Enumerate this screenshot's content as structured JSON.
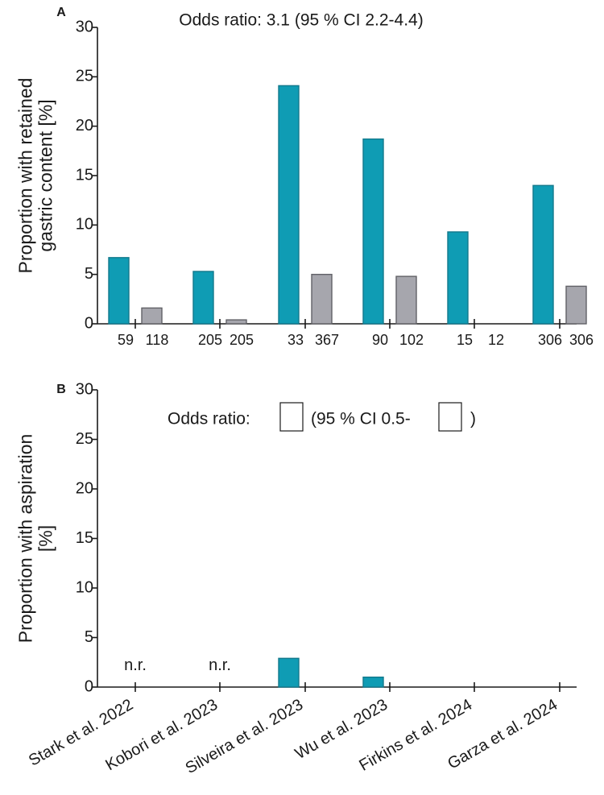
{
  "chart_data": [
    {
      "panel": "A",
      "type": "bar",
      "title": "Odds ratio: 3.1 (95 % CI 2.2-4.4)",
      "xlabel": "",
      "ylabel": "Proportion with retained gastric content [%]",
      "ylim": [
        0,
        30
      ],
      "yticks": [
        0,
        5,
        10,
        15,
        20,
        25,
        30
      ],
      "categories": [
        "Stark et al. 2022",
        "Kobori et al. 2023",
        "Silveira et al. 2023",
        "Wu et al. 2023",
        "Firkins et al. 2024",
        "Garza et al. 2024"
      ],
      "series": [
        {
          "values": [
            6.7,
            5.3,
            24.1,
            18.7,
            9.3,
            14.0
          ],
          "n": [
            "59",
            "205",
            "33",
            "90",
            "15",
            "306"
          ],
          "color": "#0f9cb4"
        },
        {
          "values": [
            1.6,
            0.4,
            5.0,
            4.8,
            0,
            3.8
          ],
          "n": [
            "118",
            "205",
            "367",
            "102",
            "12",
            "306"
          ],
          "color": "#a6a6ad"
        }
      ]
    },
    {
      "panel": "B",
      "type": "bar",
      "title": "Odds ratio:",
      "title_ci": "(95 % CI 0.5-",
      "title_close": ")",
      "xlabel": "",
      "ylabel": "Proportion with aspiration [%]",
      "ylim": [
        0,
        30
      ],
      "yticks": [
        0,
        5,
        10,
        15,
        20,
        25,
        30
      ],
      "categories": [
        "Stark et al. 2022",
        "Kobori et al. 2023",
        "Silveira et al. 2023",
        "Wu et al. 2023",
        "Firkins et al. 2024",
        "Garza et al. 2024"
      ],
      "series": [
        {
          "values": [
            null,
            null,
            2.9,
            1.0,
            null,
            null
          ],
          "color": "#0f9cb4"
        },
        {
          "values": [
            null,
            null,
            null,
            null,
            null,
            null
          ],
          "color": "#a6a6ad"
        }
      ],
      "annotations": [
        "n.r.",
        "n.r.",
        "",
        "",
        "",
        ""
      ]
    }
  ]
}
